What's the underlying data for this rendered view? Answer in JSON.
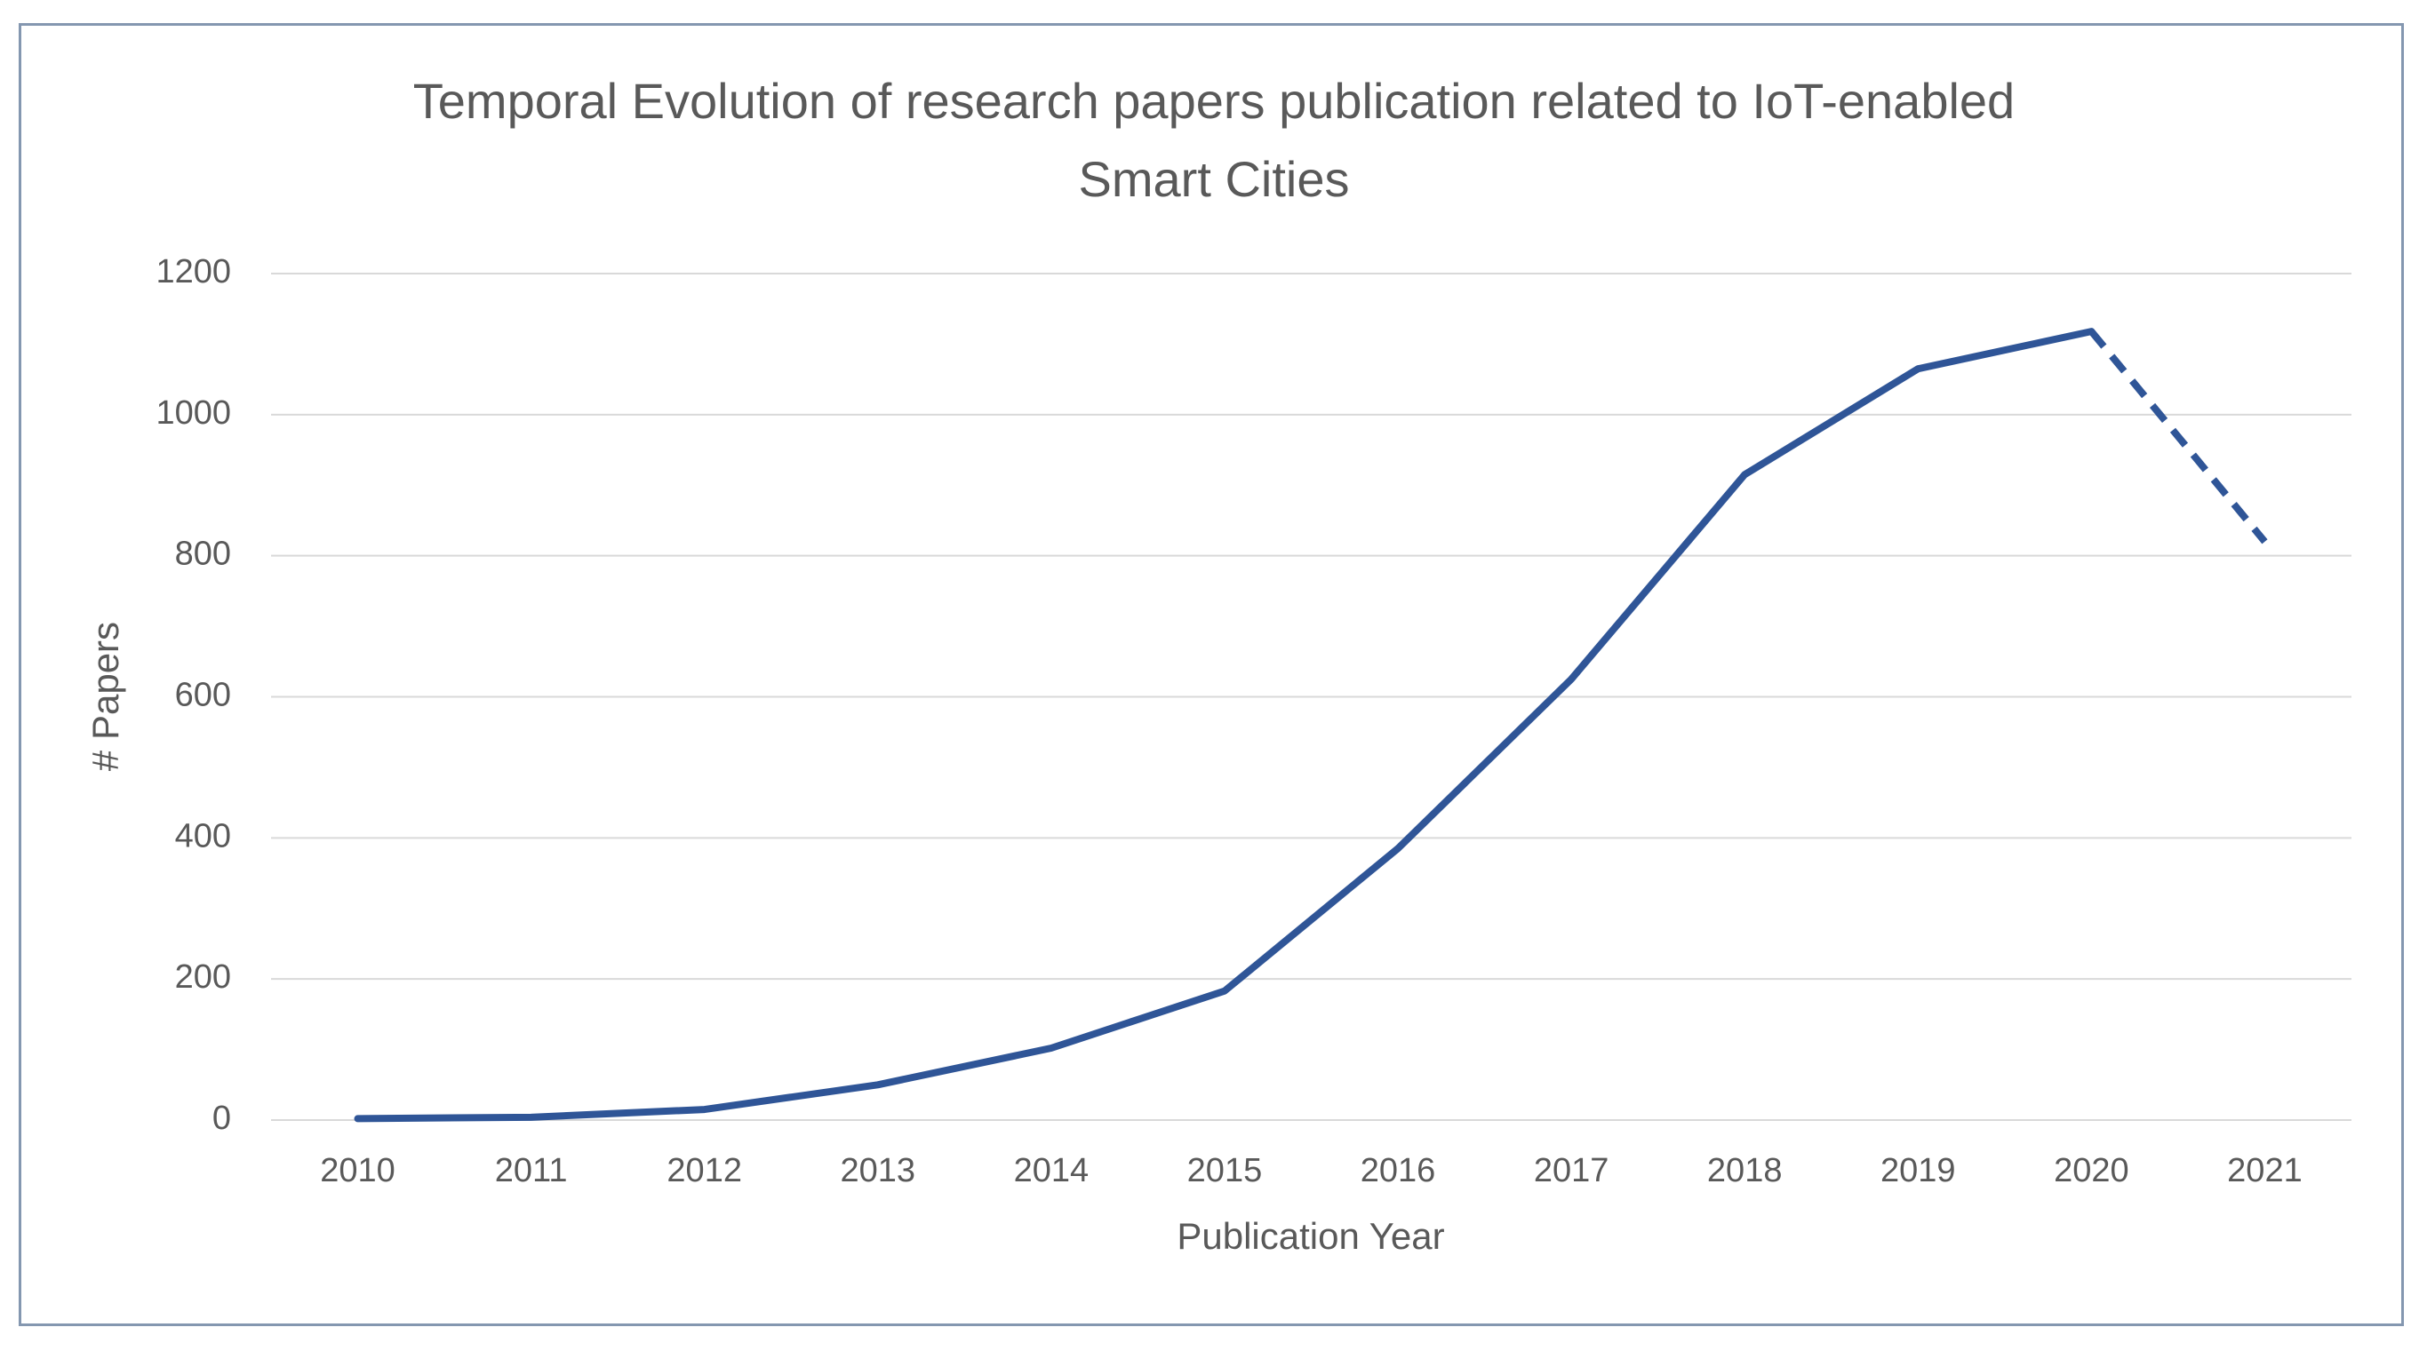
{
  "chart_data": {
    "type": "line",
    "title": "Temporal Evolution of research papers publication related to IoT-enabled Smart Cities",
    "x_label": "Publication Year",
    "y_label": "# Papers",
    "categories": [
      "2010",
      "2011",
      "2012",
      "2013",
      "2014",
      "2015",
      "2016",
      "2017",
      "2018",
      "2019",
      "2020",
      "2021"
    ],
    "values": [
      2,
      4,
      15,
      50,
      102,
      183,
      385,
      625,
      915,
      1065,
      1118,
      820
    ],
    "color": "#2f5597",
    "dash_from_index": 10,
    "ylim": [
      0,
      1200
    ],
    "yticks": [
      0,
      200,
      400,
      600,
      800,
      1000,
      1200
    ],
    "grid": true
  }
}
